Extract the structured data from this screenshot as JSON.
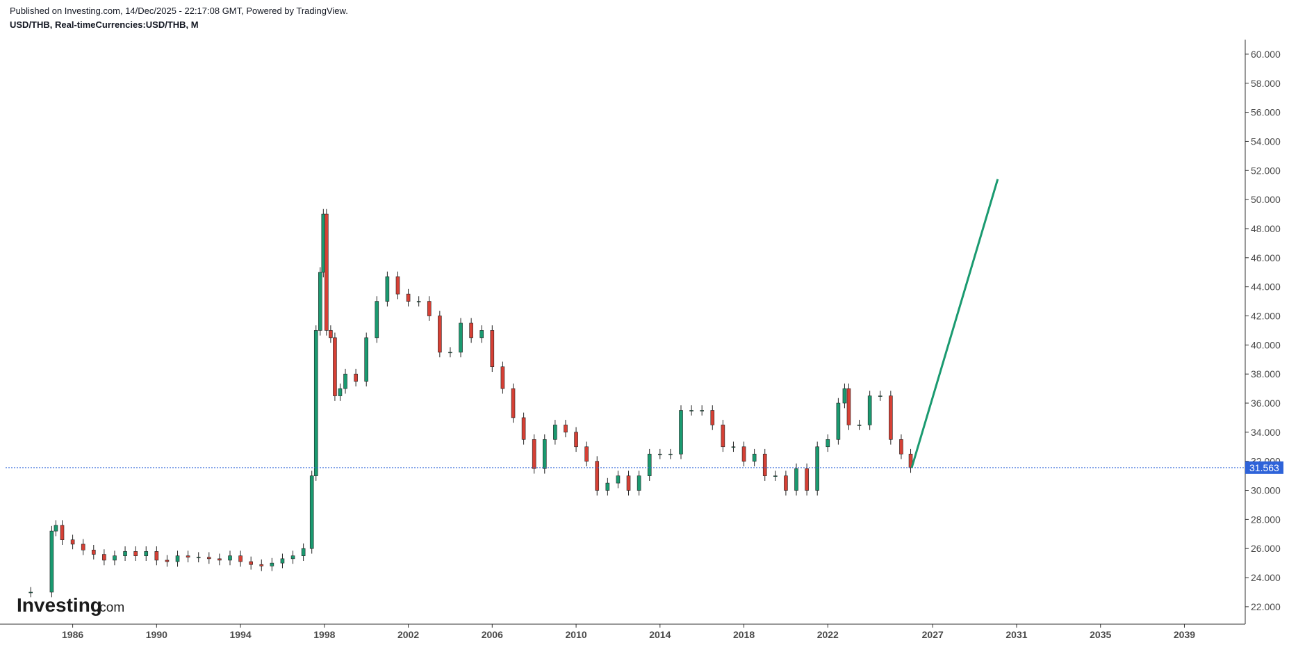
{
  "header": {
    "published": "Published on Investing.com, 14/Dec/2025 - 22:17:08 GMT, Powered by TradingView.",
    "symbol": "USD/THB, Real-timeCurrencies:USD/THB, M"
  },
  "logo": {
    "main": "Investing",
    "suffix": ".com"
  },
  "colors": {
    "up": "#1a9a70",
    "down": "#d64035",
    "wick": "#222222",
    "projection": "#1a9a70",
    "last_price_bg": "#2e63d9",
    "last_price_line": "#2e63d9",
    "axis": "#333333"
  },
  "chart_data": {
    "type": "candlestick",
    "title": "USD/THB, Real-timeCurrencies:USD/THB, M",
    "ylim": [
      20.8,
      61.0
    ],
    "xlim": [
      1982.8,
      2041.9
    ],
    "y_ticks": [
      "22.000",
      "24.000",
      "26.000",
      "28.000",
      "30.000",
      "32.000",
      "34.000",
      "36.000",
      "38.000",
      "40.000",
      "42.000",
      "44.000",
      "46.000",
      "48.000",
      "50.000",
      "52.000",
      "54.000",
      "56.000",
      "58.000",
      "60.000"
    ],
    "x_ticks": [
      "1986",
      "1990",
      "1994",
      "1998",
      "2002",
      "2006",
      "2010",
      "2014",
      "2018",
      "2022",
      "2027",
      "2031",
      "2035",
      "2039"
    ],
    "last_price": "31.563",
    "last_price_value": 31.563,
    "projection_line": {
      "from": [
        2026.0,
        31.56
      ],
      "to": [
        2030.1,
        51.4
      ]
    },
    "series": [
      {
        "x": [
          1983.0,
          1984.0,
          1985.0,
          1985.2,
          1985.5,
          1986.0,
          1986.5,
          1987.0,
          1987.5,
          1988.0,
          1988.5,
          1989.0,
          1989.5,
          1990.0,
          1990.5,
          1991.0,
          1991.5,
          1992.0,
          1992.5,
          1993.0,
          1993.5,
          1994.0,
          1994.5,
          1995.0,
          1995.5,
          1996.0,
          1996.5,
          1997.0,
          1997.4,
          1997.6,
          1997.8,
          1997.95,
          1998.1,
          1998.3,
          1998.5,
          1998.75,
          1999.0,
          1999.5,
          2000.0,
          2000.5,
          2001.0,
          2001.5,
          2002.0,
          2002.5,
          2003.0,
          2003.5,
          2004.0,
          2004.5,
          2005.0,
          2005.5,
          2006.0,
          2006.5,
          2007.0,
          2007.5,
          2008.0,
          2008.5,
          2009.0,
          2009.5,
          2010.0,
          2010.5,
          2011.0,
          2011.5,
          2012.0,
          2012.5,
          2013.0,
          2013.5,
          2014.0,
          2014.5,
          2015.0,
          2015.5,
          2016.0,
          2016.5,
          2017.0,
          2017.5,
          2018.0,
          2018.5,
          2019.0,
          2019.5,
          2020.0,
          2020.5,
          2021.0,
          2021.5,
          2022.0,
          2022.5,
          2022.8,
          2023.0,
          2023.5,
          2024.0,
          2024.5,
          2025.0,
          2025.5,
          2025.95
        ],
        "close": [
          23.0,
          23.0,
          27.2,
          27.6,
          26.6,
          26.3,
          25.9,
          25.6,
          25.2,
          25.5,
          25.8,
          25.5,
          25.8,
          25.2,
          25.1,
          25.5,
          25.4,
          25.4,
          25.3,
          25.2,
          25.5,
          25.1,
          24.9,
          24.8,
          25.0,
          25.3,
          25.5,
          26.0,
          31.0,
          41.0,
          45.0,
          49.0,
          41.0,
          40.5,
          36.5,
          37.0,
          38.0,
          37.5,
          40.5,
          43.0,
          44.7,
          43.5,
          43.0,
          43.0,
          42.0,
          39.5,
          39.5,
          41.5,
          40.5,
          41.0,
          38.5,
          37.0,
          35.0,
          33.5,
          31.5,
          33.5,
          34.5,
          34.0,
          33.0,
          32.0,
          30.0,
          30.5,
          31.0,
          30.0,
          31.0,
          32.5,
          32.5,
          32.5,
          35.5,
          35.5,
          35.5,
          34.5,
          33.0,
          33.0,
          32.0,
          32.5,
          31.0,
          31.0,
          30.0,
          31.5,
          30.0,
          33.0,
          33.5,
          36.0,
          37.0,
          34.5,
          34.5,
          36.5,
          36.5,
          33.5,
          32.5,
          31.56
        ]
      }
    ]
  }
}
